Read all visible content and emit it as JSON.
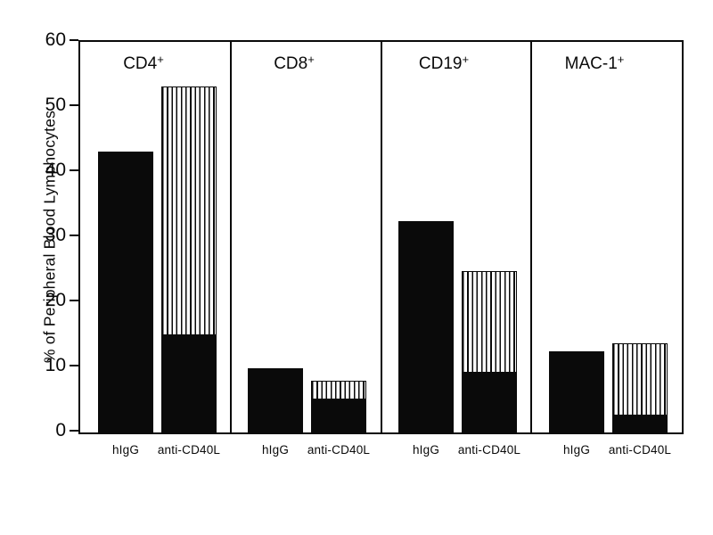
{
  "chart_data": {
    "type": "bar",
    "subtype": "stacked-grouped-panels",
    "title": "",
    "xlabel": "",
    "ylabel": "% of Peripheral Blood Lymphocytes",
    "ylim": [
      0,
      60
    ],
    "yticks": [
      0,
      10,
      20,
      30,
      40,
      50,
      60
    ],
    "grid": false,
    "legend_position": "none",
    "colors": {
      "axis": "#0a0a0a",
      "solid_fill": "#0a0a0a",
      "striped_fill": "vertical-black-stripes-on-white",
      "background": "#ffffff"
    },
    "bar_categories": [
      "hIgG",
      "anti-CD40L"
    ],
    "panels": [
      {
        "name": "CD4",
        "sup": "+",
        "bars": [
          {
            "label": "hIgG",
            "solid": 43.2,
            "striped": 0,
            "total": 43.2
          },
          {
            "label": "anti-CD40L",
            "solid": 15.0,
            "striped": 38.2,
            "total": 53.2
          }
        ]
      },
      {
        "name": "CD8",
        "sup": "+",
        "bars": [
          {
            "label": "hIgG",
            "solid": 9.8,
            "striped": 0,
            "total": 9.8
          },
          {
            "label": "anti-CD40L",
            "solid": 5.2,
            "striped": 2.8,
            "total": 8.0
          }
        ]
      },
      {
        "name": "CD19",
        "sup": "+",
        "bars": [
          {
            "label": "hIgG",
            "solid": 32.5,
            "striped": 0,
            "total": 32.5
          },
          {
            "label": "anti-CD40L",
            "solid": 9.3,
            "striped": 15.5,
            "total": 24.8
          }
        ]
      },
      {
        "name": "MAC-1",
        "sup": "+",
        "bars": [
          {
            "label": "hIgG",
            "solid": 12.4,
            "striped": 0,
            "total": 12.4
          },
          {
            "label": "anti-CD40L",
            "solid": 2.8,
            "striped": 10.9,
            "total": 13.7
          }
        ]
      }
    ]
  }
}
